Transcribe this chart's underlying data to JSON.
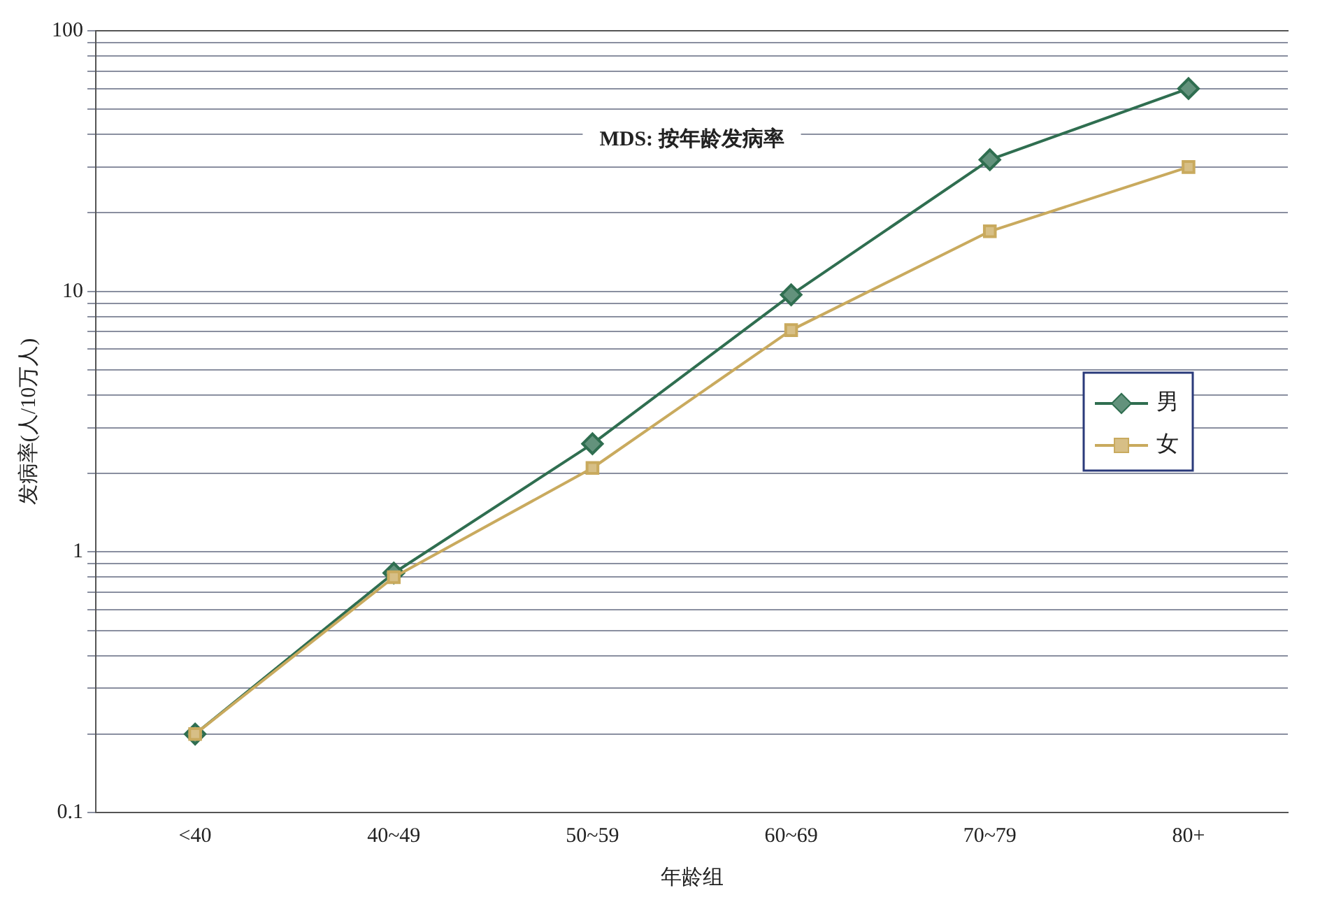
{
  "chart_data": {
    "type": "line",
    "title": "MDS: 按年龄发病率",
    "xlabel": "年龄组",
    "ylabel": "发病率(人/10万人)",
    "categories": [
      "<40",
      "40~49",
      "50~59",
      "60~69",
      "70~79",
      "80+"
    ],
    "series": [
      {
        "name": "男",
        "color": "#2f6e50",
        "marker": "diamond",
        "values": [
          0.2,
          0.83,
          2.6,
          9.7,
          32,
          60
        ]
      },
      {
        "name": "女",
        "color": "#c9aa5e",
        "marker": "square",
        "values": [
          0.2,
          0.8,
          2.1,
          7.1,
          17,
          30
        ]
      }
    ],
    "log": "y",
    "ylim": [
      0.1,
      100
    ],
    "yticks": [
      0.1,
      {
        "value": 0.2,
        "label": null
      },
      {
        "value": 0.3,
        "label": null
      },
      {
        "value": 0.4,
        "label": null
      },
      {
        "value": 0.5,
        "label": null
      },
      {
        "value": 0.6,
        "label": null
      },
      {
        "value": 0.7,
        "label": null
      },
      {
        "value": 0.8,
        "label": null
      },
      {
        "value": 0.9,
        "label": null
      },
      1,
      {
        "value": 2,
        "label": null
      },
      {
        "value": 3,
        "label": null
      },
      {
        "value": 4,
        "label": null
      },
      {
        "value": 5,
        "label": null
      },
      {
        "value": 6,
        "label": null
      },
      {
        "value": 7,
        "label": null
      },
      {
        "value": 8,
        "label": null
      },
      {
        "value": 9,
        "label": null
      },
      10,
      {
        "value": 20,
        "label": null
      },
      {
        "value": 30,
        "label": null
      },
      {
        "value": 40,
        "label": null
      },
      {
        "value": 50,
        "label": null
      },
      {
        "value": 60,
        "label": null
      },
      {
        "value": 70,
        "label": null
      },
      {
        "value": 80,
        "label": null
      },
      {
        "value": 90,
        "label": null
      },
      100
    ],
    "grid": "y",
    "legend": "right",
    "line_style": "solid"
  }
}
